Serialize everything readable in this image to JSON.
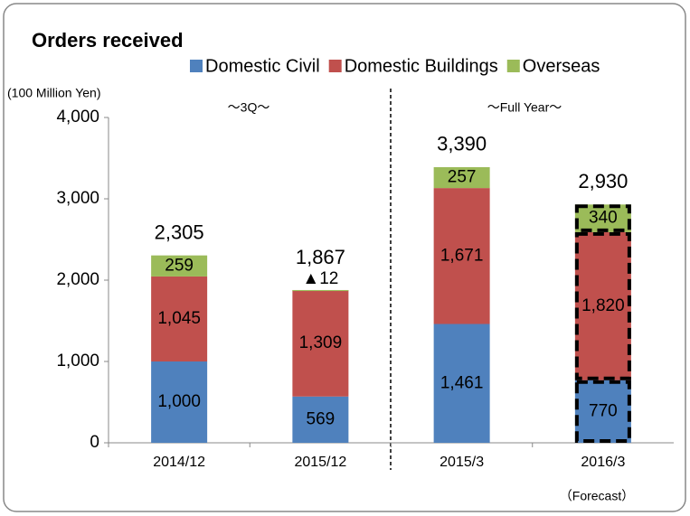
{
  "chart_data": {
    "type": "bar",
    "stacked": true,
    "title": "Orders received",
    "y_unit": "(100 Million Yen)",
    "annotations": [
      "～3Q～",
      "～Full Year～",
      "（Forecast）"
    ],
    "categories": [
      "2014/12",
      "2015/12",
      "2015/3",
      "2016/3"
    ],
    "series": [
      {
        "name": "Domestic Civil",
        "color": "#4f81bd",
        "values": [
          1000,
          569,
          1461,
          770
        ],
        "value_labels": [
          "1,000",
          "569",
          "1,461",
          "770"
        ]
      },
      {
        "name": "Domestic Buildings",
        "color": "#c0504d",
        "values": [
          1045,
          1309,
          1671,
          1820
        ],
        "value_labels": [
          "1,045",
          "1,309",
          "1,671",
          "1,820"
        ]
      },
      {
        "name": "Overseas",
        "color": "#9bbb59",
        "values": [
          259,
          -12,
          257,
          340
        ],
        "value_labels": [
          "259",
          "▲12",
          "257",
          "340"
        ]
      }
    ],
    "totals": [
      2305,
      1867,
      3390,
      2930
    ],
    "total_labels": [
      "2,305",
      "1,867",
      "3,390",
      "2,930"
    ],
    "ylim": [
      0,
      4000
    ],
    "yticks": [
      0,
      {
        "value": 1000,
        "label": "1,000"
      },
      {
        "value": 2000,
        "label": "2,000"
      },
      {
        "value": 3000,
        "label": "3,000"
      },
      {
        "value": 4000,
        "label": "4,000"
      }
    ],
    "grid": false,
    "legend": "top"
  }
}
